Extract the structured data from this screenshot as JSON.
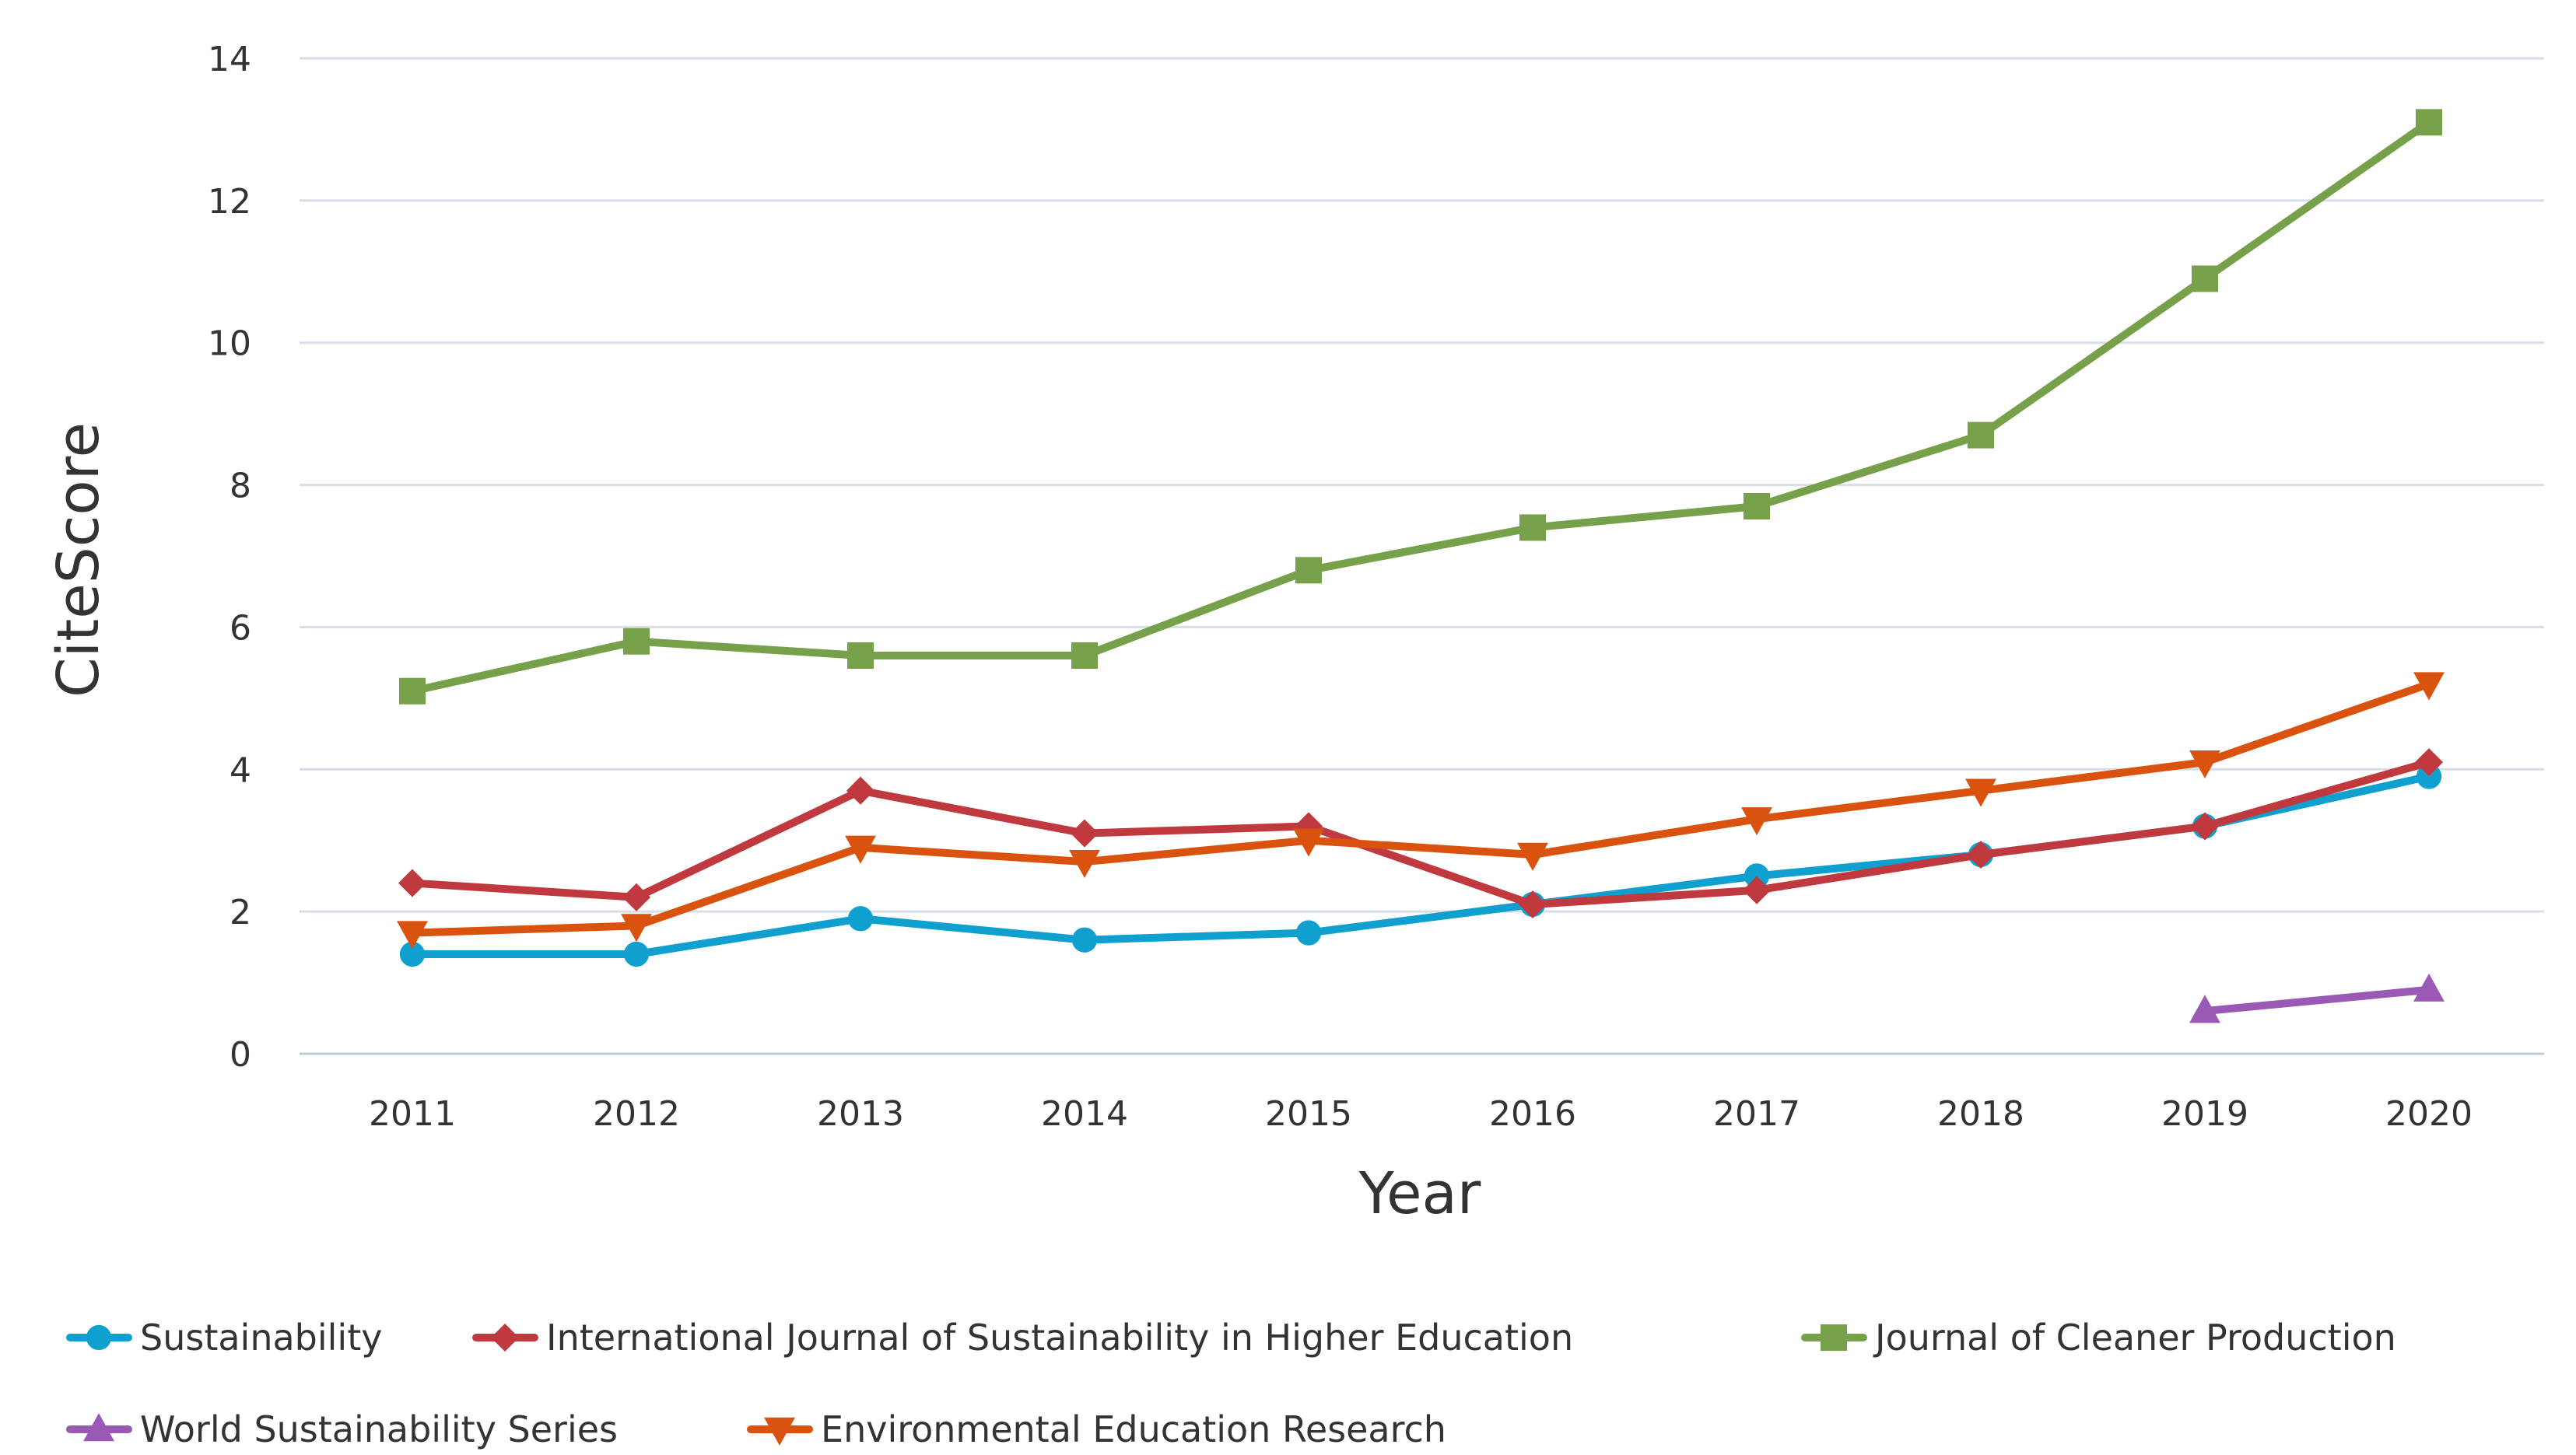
{
  "chart_data": {
    "type": "line",
    "title": "",
    "xlabel": "Year",
    "ylabel": "CiteScore",
    "x": [
      "2011",
      "2012",
      "2013",
      "2014",
      "2015",
      "2016",
      "2017",
      "2018",
      "2019",
      "2020"
    ],
    "ylim": [
      0,
      14
    ],
    "yticks": [
      0,
      2,
      4,
      6,
      8,
      10,
      12,
      14
    ],
    "grid": true,
    "legend_position": "bottom",
    "series": [
      {
        "name": "Sustainability",
        "color": "#0fa0d0",
        "marker": "circle",
        "values": [
          1.4,
          1.4,
          1.9,
          1.6,
          1.7,
          2.1,
          2.5,
          2.8,
          3.2,
          3.9
        ]
      },
      {
        "name": "International Journal of Sustainability in Higher Education",
        "color": "#c0393e",
        "marker": "diamond",
        "values": [
          2.4,
          2.2,
          3.7,
          3.1,
          3.2,
          2.1,
          2.3,
          2.8,
          3.2,
          4.1
        ]
      },
      {
        "name": "Journal of Cleaner Production",
        "color": "#77a04a",
        "marker": "square",
        "values": [
          5.1,
          5.8,
          5.6,
          5.6,
          6.8,
          7.4,
          7.7,
          8.7,
          10.9,
          13.1
        ]
      },
      {
        "name": "World Sustainability Series",
        "color": "#9b59b6",
        "marker": "triangle-up",
        "values": [
          null,
          null,
          null,
          null,
          null,
          null,
          null,
          null,
          0.6,
          0.9
        ]
      },
      {
        "name": "Environmental Education Research",
        "color": "#d9530f",
        "marker": "triangle-down",
        "values": [
          1.7,
          1.8,
          2.9,
          2.7,
          3.0,
          2.8,
          3.3,
          3.7,
          4.1,
          5.2
        ]
      }
    ]
  }
}
